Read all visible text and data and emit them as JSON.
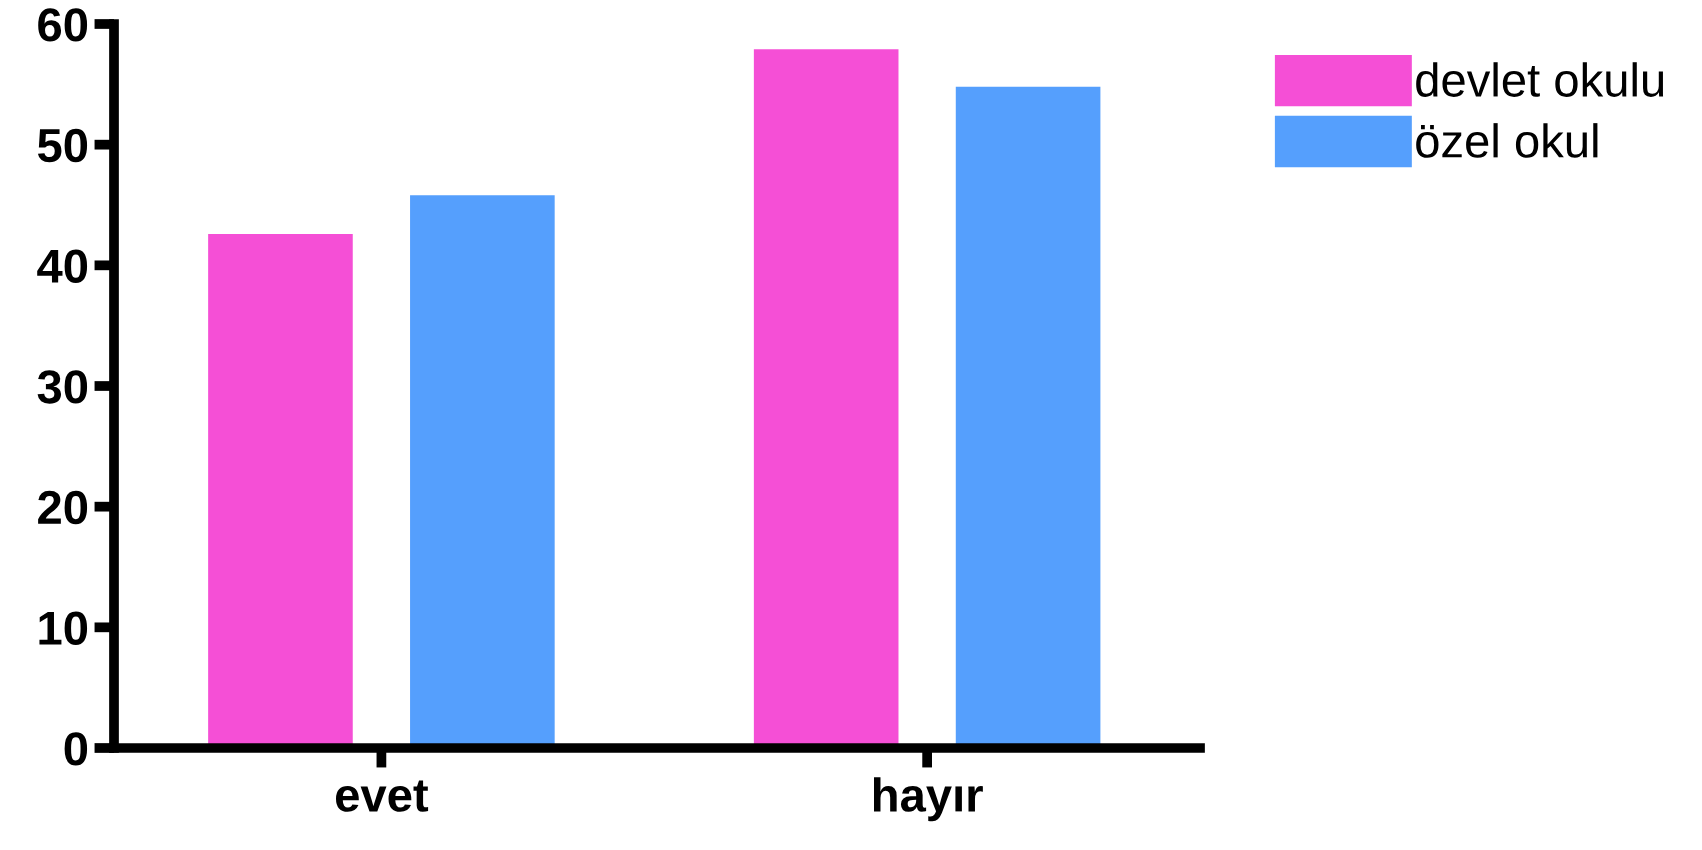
{
  "chart_data": {
    "type": "bar",
    "categories": [
      "evet",
      "hayır"
    ],
    "series": [
      {
        "name": "devlet okulu",
        "color": "#f54fd6",
        "values": [
          42.6,
          57.9
        ]
      },
      {
        "name": "özel okul",
        "color": "#559ffd",
        "values": [
          45.8,
          54.8
        ]
      }
    ],
    "ylim": [
      0,
      60
    ],
    "yticks": [
      0,
      10,
      20,
      30,
      40,
      50,
      60
    ],
    "grid": false,
    "legend": "top right"
  }
}
